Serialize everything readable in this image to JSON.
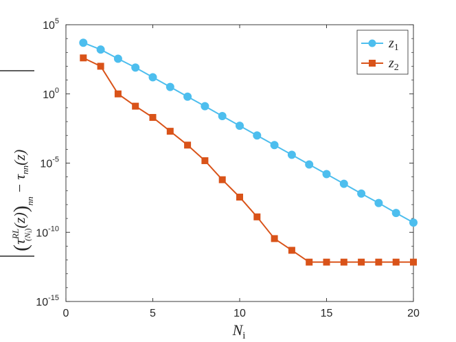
{
  "chart_data": {
    "type": "line",
    "y_scale": "log",
    "xlim": [
      0,
      20
    ],
    "ylim": [
      1e-15,
      100000.0
    ],
    "x_ticks": [
      0,
      5,
      10,
      15,
      20
    ],
    "x_tick_labels": [
      "0",
      "5",
      "10",
      "15",
      "20"
    ],
    "y_ticks": [
      1e-15,
      1e-10,
      1e-05,
      1.0,
      100000.0
    ],
    "y_tick_labels": [
      {
        "base": "10",
        "exp": "-15"
      },
      {
        "base": "10",
        "exp": "-10"
      },
      {
        "base": "10",
        "exp": "-5"
      },
      {
        "base": "10",
        "exp": "0"
      },
      {
        "base": "10",
        "exp": "5"
      }
    ],
    "xlabel": {
      "main": "N",
      "sub": "i"
    },
    "ylabel": {
      "tau": "τ",
      "sup": "RL",
      "sub_open": "(N",
      "sub_sub": "i",
      "sub_close": ")",
      "paren_sub": "nn",
      "minus": "−",
      "tau2": "τ",
      "tau2_sub": "nn",
      "arg": "(z)"
    },
    "grid": false,
    "legend_position": "top-right",
    "series": [
      {
        "name": "z1",
        "name_main": "z",
        "name_sub": "1",
        "color": "#4DBEEE",
        "marker": "circle",
        "x": [
          1,
          2,
          3,
          4,
          5,
          6,
          7,
          8,
          9,
          10,
          11,
          12,
          13,
          14,
          15,
          16,
          17,
          18,
          19,
          20
        ],
        "y": [
          5000.0,
          1600.0,
          350.0,
          80.0,
          16.0,
          3.2,
          0.63,
          0.13,
          0.025,
          0.005,
          0.001,
          0.0002,
          4e-05,
          8e-06,
          1.6e-06,
          3.2e-07,
          6.3e-08,
          1.3e-08,
          2.5e-09,
          5e-10
        ]
      },
      {
        "name": "z2",
        "name_main": "z",
        "name_sub": "2",
        "color": "#D95319",
        "marker": "square",
        "x": [
          1,
          2,
          3,
          4,
          5,
          6,
          7,
          8,
          9,
          10,
          11,
          12,
          13,
          14,
          15,
          16,
          17,
          18,
          19,
          20
        ],
        "y": [
          400.0,
          100.0,
          1.0,
          0.13,
          0.02,
          0.002,
          0.0002,
          1.5e-05,
          6.3e-07,
          3.5e-08,
          1.3e-09,
          3.5e-11,
          5e-12,
          7e-13,
          7e-13,
          7e-13,
          7e-13,
          7e-13,
          7e-13,
          7e-13
        ]
      }
    ]
  }
}
